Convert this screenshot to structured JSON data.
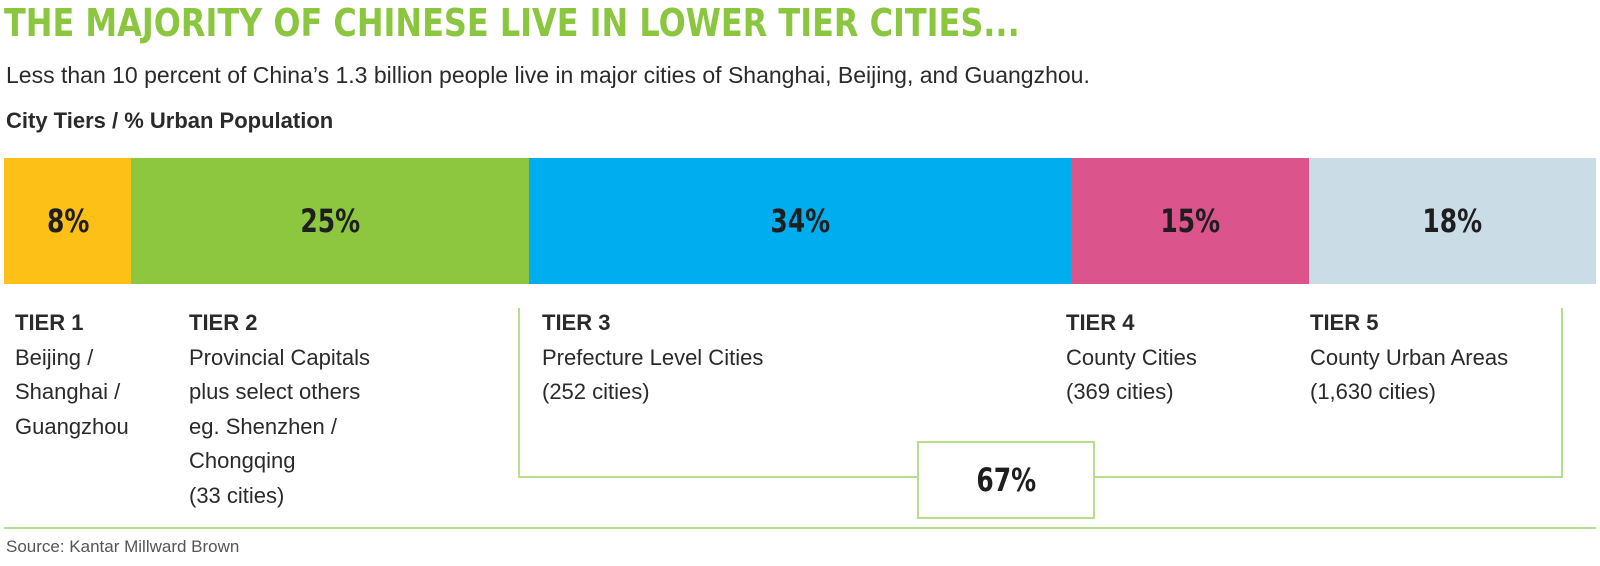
{
  "title": "THE MAJORITY OF CHINESE LIVE IN LOWER TIER CITIES...",
  "subtitle": "Less than 10 percent of China’s 1.3 billion people live in major cities of Shanghai, Beijing, and Guangzhou.",
  "chart_label": "City Tiers / % Urban Population",
  "source": "Source: Kantar Millward Brown",
  "chart_data": {
    "type": "bar",
    "stacked": true,
    "orientation": "horizontal",
    "unit": "%",
    "categories": [
      "TIER 1",
      "TIER 2",
      "TIER 3",
      "TIER 4",
      "TIER 5"
    ],
    "values": [
      8,
      25,
      34,
      15,
      18
    ],
    "value_labels": [
      "8%",
      "25%",
      "34%",
      "15%",
      "18%"
    ],
    "colors": [
      "#fdc016",
      "#8dc63f",
      "#00aeef",
      "#dc548c",
      "#cadde6"
    ],
    "tiers": [
      {
        "name": "TIER 1",
        "lines": [
          "Beijing /",
          "Shanghai /",
          "Guangzhou"
        ]
      },
      {
        "name": "TIER 2",
        "lines": [
          "Provincial Capitals",
          "plus select others",
          "eg. Shenzhen /",
          "Chongqing",
          "(33 cities)"
        ]
      },
      {
        "name": "TIER 3",
        "lines": [
          "Prefecture Level Cities",
          "(252 cities)"
        ]
      },
      {
        "name": "TIER 4",
        "lines": [
          "County Cities",
          "(369 cities)"
        ]
      },
      {
        "name": "TIER 5",
        "lines": [
          "County Urban Areas",
          "(1,630 cities)"
        ]
      }
    ],
    "combined": {
      "value": 67,
      "label": "67%",
      "applies_to": [
        "TIER 3",
        "TIER 4",
        "TIER 5"
      ]
    }
  },
  "colors": {
    "accent_green": "#8bc63f",
    "bracket_line": "#b9dd8f"
  }
}
